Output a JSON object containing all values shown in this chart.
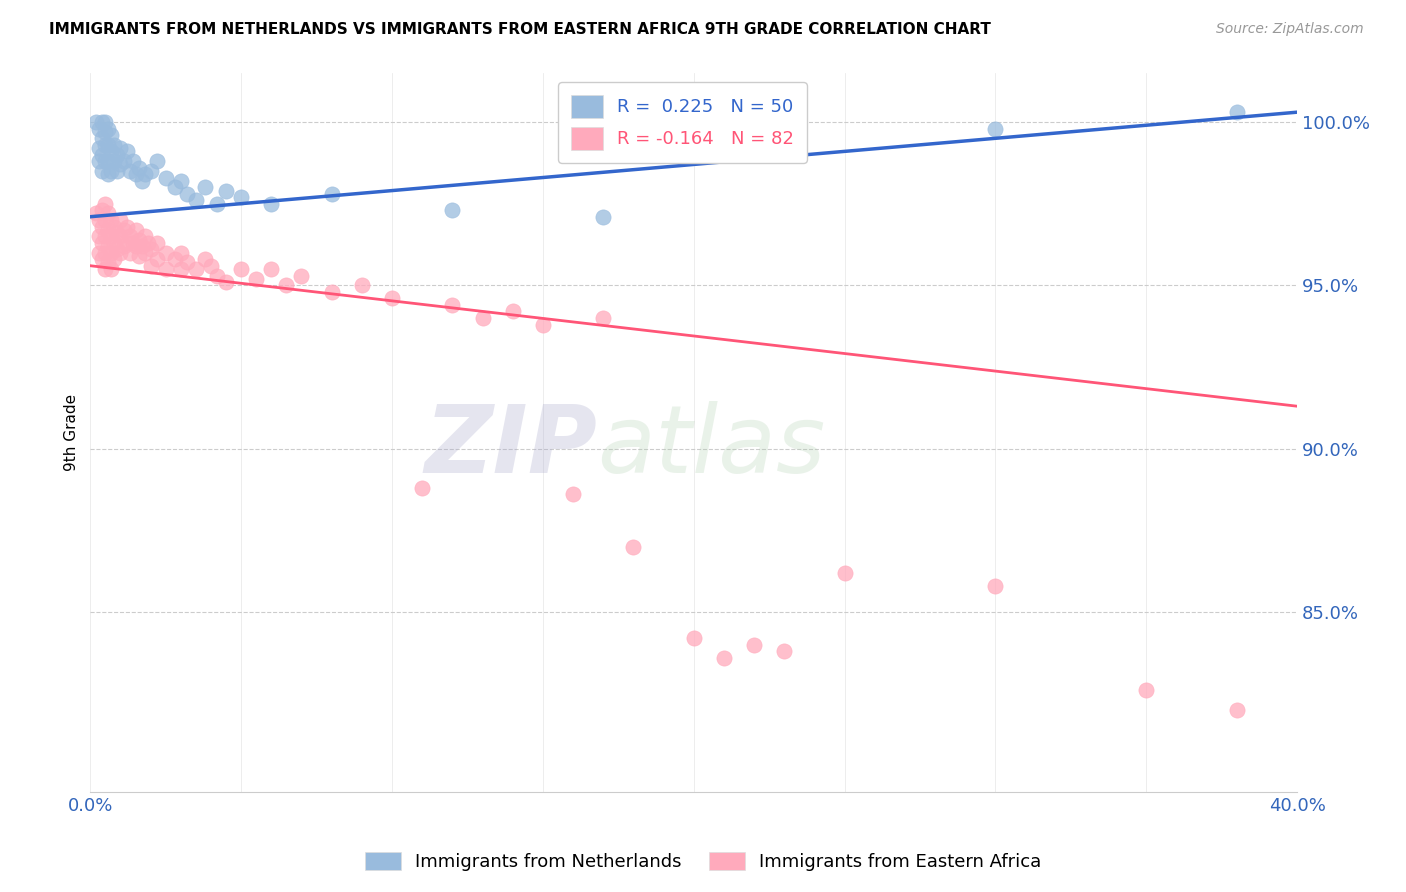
{
  "title": "IMMIGRANTS FROM NETHERLANDS VS IMMIGRANTS FROM EASTERN AFRICA 9TH GRADE CORRELATION CHART",
  "source": "Source: ZipAtlas.com",
  "ylabel": "9th Grade",
  "yticks": [
    "100.0%",
    "95.0%",
    "90.0%",
    "85.0%"
  ],
  "ytick_vals": [
    1.0,
    0.95,
    0.9,
    0.85
  ],
  "xlim": [
    0.0,
    0.4
  ],
  "ylim": [
    0.795,
    1.015
  ],
  "legend_blue_r": "R =  0.225",
  "legend_blue_n": "N = 50",
  "legend_pink_r": "R = -0.164",
  "legend_pink_n": "N = 82",
  "blue_color": "#99BBDD",
  "pink_color": "#FFAABC",
  "line_blue_color": "#3366CC",
  "line_pink_color": "#FF5577",
  "watermark_zip": "ZIP",
  "watermark_atlas": "atlas",
  "blue_scatter": [
    [
      0.002,
      1.0
    ],
    [
      0.003,
      0.998
    ],
    [
      0.003,
      0.992
    ],
    [
      0.003,
      0.988
    ],
    [
      0.004,
      1.0
    ],
    [
      0.004,
      0.995
    ],
    [
      0.004,
      0.99
    ],
    [
      0.004,
      0.985
    ],
    [
      0.005,
      1.0
    ],
    [
      0.005,
      0.997
    ],
    [
      0.005,
      0.993
    ],
    [
      0.005,
      0.988
    ],
    [
      0.006,
      0.998
    ],
    [
      0.006,
      0.993
    ],
    [
      0.006,
      0.988
    ],
    [
      0.006,
      0.984
    ],
    [
      0.007,
      0.996
    ],
    [
      0.007,
      0.991
    ],
    [
      0.007,
      0.985
    ],
    [
      0.008,
      0.993
    ],
    [
      0.008,
      0.988
    ],
    [
      0.009,
      0.99
    ],
    [
      0.009,
      0.985
    ],
    [
      0.01,
      0.992
    ],
    [
      0.01,
      0.987
    ],
    [
      0.011,
      0.988
    ],
    [
      0.012,
      0.991
    ],
    [
      0.013,
      0.985
    ],
    [
      0.014,
      0.988
    ],
    [
      0.015,
      0.984
    ],
    [
      0.016,
      0.986
    ],
    [
      0.017,
      0.982
    ],
    [
      0.018,
      0.984
    ],
    [
      0.02,
      0.985
    ],
    [
      0.022,
      0.988
    ],
    [
      0.025,
      0.983
    ],
    [
      0.028,
      0.98
    ],
    [
      0.03,
      0.982
    ],
    [
      0.032,
      0.978
    ],
    [
      0.035,
      0.976
    ],
    [
      0.038,
      0.98
    ],
    [
      0.042,
      0.975
    ],
    [
      0.045,
      0.979
    ],
    [
      0.05,
      0.977
    ],
    [
      0.06,
      0.975
    ],
    [
      0.08,
      0.978
    ],
    [
      0.12,
      0.973
    ],
    [
      0.17,
      0.971
    ],
    [
      0.3,
      0.998
    ],
    [
      0.38,
      1.003
    ]
  ],
  "pink_scatter": [
    [
      0.002,
      0.972
    ],
    [
      0.003,
      0.97
    ],
    [
      0.003,
      0.965
    ],
    [
      0.003,
      0.96
    ],
    [
      0.004,
      0.973
    ],
    [
      0.004,
      0.968
    ],
    [
      0.004,
      0.963
    ],
    [
      0.004,
      0.958
    ],
    [
      0.005,
      0.975
    ],
    [
      0.005,
      0.97
    ],
    [
      0.005,
      0.965
    ],
    [
      0.005,
      0.96
    ],
    [
      0.005,
      0.955
    ],
    [
      0.006,
      0.972
    ],
    [
      0.006,
      0.967
    ],
    [
      0.006,
      0.962
    ],
    [
      0.006,
      0.957
    ],
    [
      0.007,
      0.97
    ],
    [
      0.007,
      0.965
    ],
    [
      0.007,
      0.96
    ],
    [
      0.007,
      0.955
    ],
    [
      0.008,
      0.968
    ],
    [
      0.008,
      0.963
    ],
    [
      0.008,
      0.958
    ],
    [
      0.009,
      0.966
    ],
    [
      0.009,
      0.961
    ],
    [
      0.01,
      0.97
    ],
    [
      0.01,
      0.965
    ],
    [
      0.01,
      0.96
    ],
    [
      0.011,
      0.967
    ],
    [
      0.011,
      0.962
    ],
    [
      0.012,
      0.968
    ],
    [
      0.012,
      0.963
    ],
    [
      0.013,
      0.965
    ],
    [
      0.013,
      0.96
    ],
    [
      0.014,
      0.963
    ],
    [
      0.015,
      0.967
    ],
    [
      0.015,
      0.962
    ],
    [
      0.016,
      0.964
    ],
    [
      0.016,
      0.959
    ],
    [
      0.017,
      0.962
    ],
    [
      0.018,
      0.965
    ],
    [
      0.018,
      0.96
    ],
    [
      0.019,
      0.963
    ],
    [
      0.02,
      0.961
    ],
    [
      0.02,
      0.956
    ],
    [
      0.022,
      0.963
    ],
    [
      0.022,
      0.958
    ],
    [
      0.025,
      0.96
    ],
    [
      0.025,
      0.955
    ],
    [
      0.028,
      0.958
    ],
    [
      0.03,
      0.96
    ],
    [
      0.03,
      0.955
    ],
    [
      0.032,
      0.957
    ],
    [
      0.035,
      0.955
    ],
    [
      0.038,
      0.958
    ],
    [
      0.04,
      0.956
    ],
    [
      0.042,
      0.953
    ],
    [
      0.045,
      0.951
    ],
    [
      0.05,
      0.955
    ],
    [
      0.055,
      0.952
    ],
    [
      0.06,
      0.955
    ],
    [
      0.065,
      0.95
    ],
    [
      0.07,
      0.953
    ],
    [
      0.08,
      0.948
    ],
    [
      0.09,
      0.95
    ],
    [
      0.1,
      0.946
    ],
    [
      0.11,
      0.888
    ],
    [
      0.12,
      0.944
    ],
    [
      0.13,
      0.94
    ],
    [
      0.14,
      0.942
    ],
    [
      0.15,
      0.938
    ],
    [
      0.16,
      0.886
    ],
    [
      0.17,
      0.94
    ],
    [
      0.18,
      0.87
    ],
    [
      0.2,
      0.842
    ],
    [
      0.21,
      0.836
    ],
    [
      0.22,
      0.84
    ],
    [
      0.23,
      0.838
    ],
    [
      0.25,
      0.862
    ],
    [
      0.3,
      0.858
    ],
    [
      0.35,
      0.826
    ],
    [
      0.38,
      0.82
    ]
  ],
  "blue_line": [
    [
      0.0,
      0.971
    ],
    [
      0.4,
      1.003
    ]
  ],
  "pink_line": [
    [
      0.0,
      0.956
    ],
    [
      0.4,
      0.913
    ]
  ]
}
